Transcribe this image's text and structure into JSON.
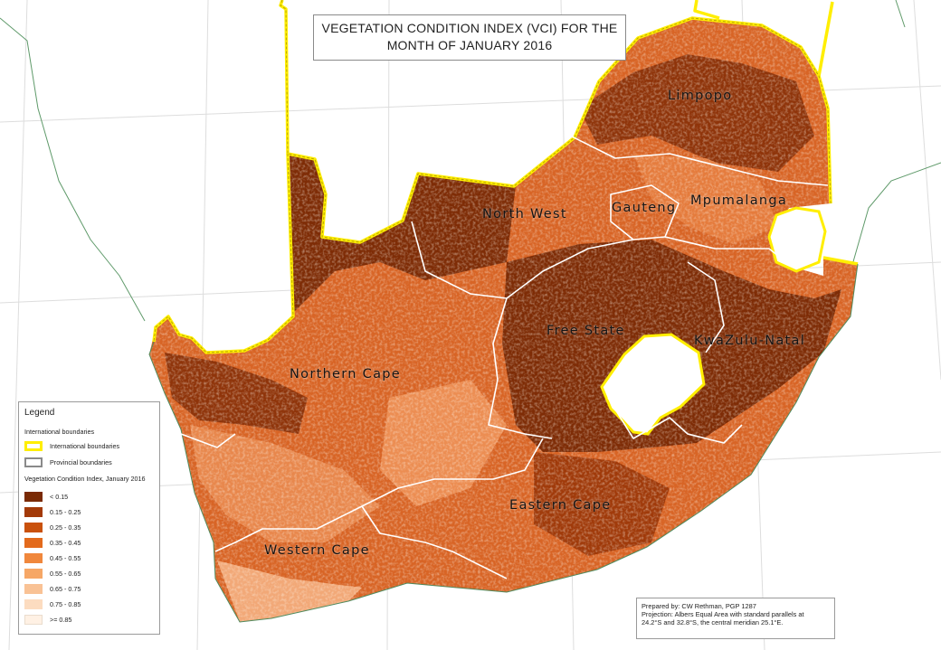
{
  "title": {
    "line1": "VEGETATION CONDITION INDEX (VCI) FOR THE",
    "line2": "MONTH OF JANUARY 2016"
  },
  "provinces": [
    {
      "key": "limpopo",
      "label": "Limpopo"
    },
    {
      "key": "north-west",
      "label": "North West"
    },
    {
      "key": "gauteng",
      "label": "Gauteng"
    },
    {
      "key": "mpumalanga",
      "label": "Mpumalanga"
    },
    {
      "key": "free-state",
      "label": "Free State"
    },
    {
      "key": "kwazulu-natal",
      "label": "KwaZulu-Natal"
    },
    {
      "key": "northern-cape",
      "label": "Northern Cape"
    },
    {
      "key": "eastern-cape",
      "label": "Eastern Cape"
    },
    {
      "key": "western-cape",
      "label": "Western Cape"
    }
  ],
  "legend": {
    "title": "Legend",
    "boundaries_heading": "International boundaries",
    "boundary_items": [
      {
        "label": "International boundaries",
        "color": "#ffee00"
      },
      {
        "label": "Provincial boundaries",
        "color": "#ffffff"
      }
    ],
    "vci_heading": "Vegetation Condition Index, January 2016",
    "classes": [
      {
        "label": "< 0.15",
        "color": "#7a2a05"
      },
      {
        "label": "0.15 - 0.25",
        "color": "#a33a08"
      },
      {
        "label": "0.25 - 0.35",
        "color": "#c9510c"
      },
      {
        "label": "0.35 - 0.45",
        "color": "#e36a1c"
      },
      {
        "label": "0.45 - 0.55",
        "color": "#f0873c"
      },
      {
        "label": "0.55 - 0.65",
        "color": "#f6a766"
      },
      {
        "label": "0.65 - 0.75",
        "color": "#f9c295"
      },
      {
        "label": "0.75 - 0.85",
        "color": "#fcdcc0"
      },
      {
        "label": ">= 0.85",
        "color": "#fff1e4"
      }
    ]
  },
  "credits": {
    "line1": "Prepared by: CW Rethman, PGP 1287",
    "line2": "Projection: Albers Equal Area with standard parallels at",
    "line3": "24.2°S  and 32.8°S, the central meridian 25.1°E."
  }
}
